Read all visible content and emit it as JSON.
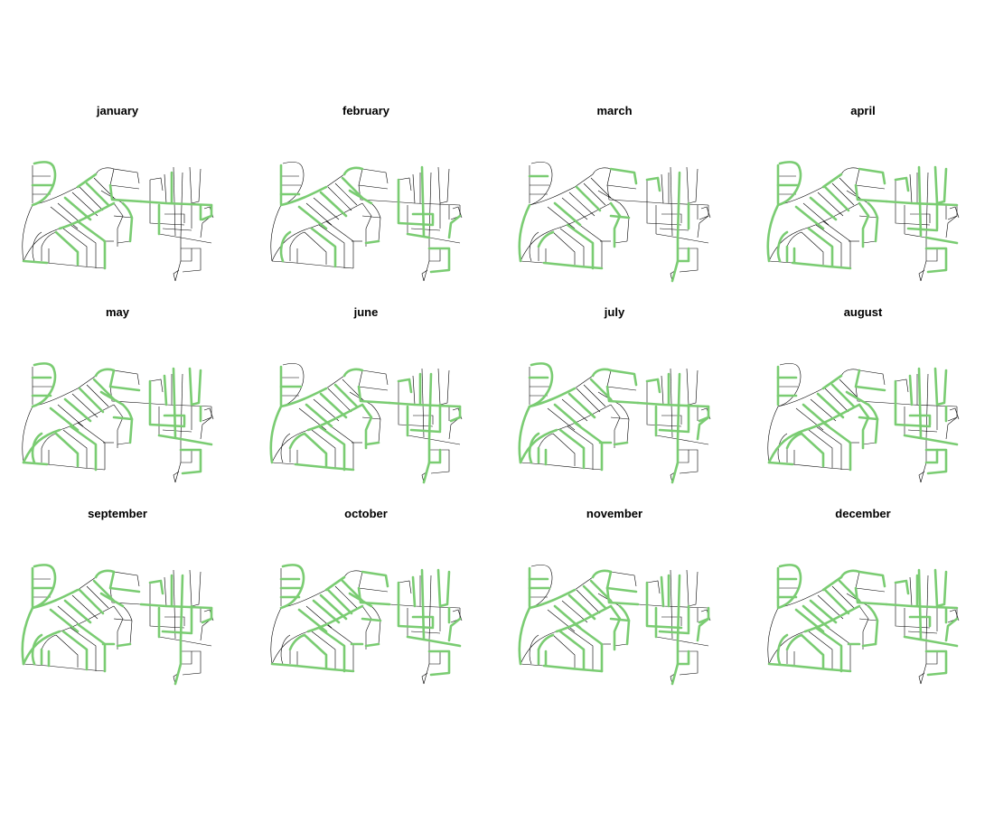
{
  "colors": {
    "street": "#000000",
    "highlight": "#7acc72",
    "background": "#ffffff"
  },
  "panels": [
    {
      "title": "january",
      "highlighted": [
        0,
        3,
        6,
        8,
        12,
        16,
        20,
        23,
        26,
        29,
        33,
        36,
        40,
        44,
        47,
        52
      ]
    },
    {
      "title": "february",
      "highlighted": [
        1,
        4,
        7,
        9,
        13,
        17,
        21,
        24,
        27,
        30,
        34,
        37,
        41,
        45,
        49,
        53,
        55
      ]
    },
    {
      "title": "march",
      "highlighted": [
        2,
        5,
        10,
        14,
        18,
        22,
        25,
        28,
        31,
        35,
        38,
        42,
        46,
        50,
        54
      ]
    },
    {
      "title": "april",
      "highlighted": [
        0,
        1,
        3,
        5,
        8,
        10,
        12,
        14,
        17,
        19,
        21,
        24,
        26,
        28,
        31,
        33,
        36,
        38,
        41,
        43,
        46,
        48,
        51,
        53
      ]
    },
    {
      "title": "may",
      "highlighted": [
        0,
        2,
        4,
        6,
        9,
        11,
        13,
        15,
        17,
        20,
        22,
        24,
        26,
        28,
        30,
        33,
        35,
        37,
        39,
        41,
        43,
        45,
        47,
        49,
        51,
        53
      ]
    },
    {
      "title": "june",
      "highlighted": [
        1,
        3,
        5,
        7,
        9,
        12,
        14,
        16,
        18,
        20,
        22,
        25,
        27,
        29,
        31,
        34,
        36,
        38,
        40,
        42,
        44,
        46,
        48,
        50,
        52,
        54
      ]
    },
    {
      "title": "july",
      "highlighted": [
        0,
        2,
        5,
        7,
        9,
        10,
        12,
        15,
        17,
        19,
        21,
        23,
        25,
        27,
        30,
        32,
        34,
        36,
        38,
        40,
        42,
        44,
        46,
        48,
        50,
        52,
        55
      ]
    },
    {
      "title": "august",
      "highlighted": [
        1,
        2,
        4,
        6,
        8,
        11,
        13,
        15,
        16,
        18,
        20,
        23,
        25,
        27,
        29,
        31,
        33,
        35,
        37,
        39,
        41,
        43,
        45,
        47,
        49,
        51,
        53,
        54
      ]
    },
    {
      "title": "september",
      "highlighted": [
        0,
        1,
        3,
        5,
        7,
        9,
        11,
        13,
        15,
        17,
        19,
        21,
        23,
        24,
        26,
        28,
        30,
        32,
        34,
        36,
        38,
        40,
        42,
        44,
        46,
        48,
        50,
        52
      ]
    },
    {
      "title": "october",
      "highlighted": [
        0,
        2,
        3,
        4,
        6,
        8,
        10,
        12,
        13,
        14,
        16,
        18,
        20,
        22,
        24,
        26,
        27,
        28,
        30,
        32,
        34,
        35,
        37,
        39,
        41,
        43,
        45,
        47,
        49,
        51,
        53,
        55
      ]
    },
    {
      "title": "november",
      "highlighted": [
        1,
        2,
        3,
        5,
        7,
        9,
        11,
        12,
        14,
        16,
        18,
        19,
        21,
        23,
        25,
        27,
        29,
        30,
        31,
        33,
        35,
        37,
        39,
        40,
        42,
        44,
        46,
        48,
        50,
        52,
        54,
        55
      ]
    },
    {
      "title": "december",
      "highlighted": [
        0,
        1,
        2,
        4,
        6,
        8,
        9,
        10,
        12,
        14,
        16,
        17,
        18,
        20,
        22,
        24,
        25,
        26,
        28,
        30,
        32,
        33,
        34,
        36,
        38,
        40,
        41,
        43,
        45,
        47,
        49,
        51,
        53,
        55
      ]
    }
  ]
}
